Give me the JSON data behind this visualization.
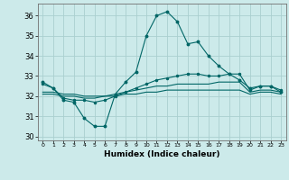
{
  "title": "",
  "xlabel": "Humidex (Indice chaleur)",
  "ylabel": "",
  "bg_color": "#cceaea",
  "line_color": "#006666",
  "grid_color": "#aacfcf",
  "xlim": [
    -0.5,
    23.5
  ],
  "ylim": [
    29.8,
    36.6
  ],
  "yticks": [
    30,
    31,
    32,
    33,
    34,
    35,
    36
  ],
  "xtick_labels": [
    "0",
    "1",
    "2",
    "3",
    "4",
    "5",
    "6",
    "7",
    "8",
    "9",
    "10",
    "11",
    "12",
    "13",
    "14",
    "15",
    "16",
    "17",
    "18",
    "19",
    "20",
    "21",
    "22",
    "23"
  ],
  "line1_x": [
    0,
    1,
    2,
    3,
    4,
    5,
    6,
    7,
    8,
    9,
    10,
    11,
    12,
    13,
    14,
    15,
    16,
    17,
    18,
    19,
    20,
    21,
    22,
    23
  ],
  "line1_y": [
    32.7,
    32.4,
    31.8,
    31.7,
    30.9,
    30.5,
    30.5,
    32.1,
    32.7,
    33.2,
    35.0,
    36.0,
    36.2,
    35.7,
    34.6,
    34.7,
    34.0,
    33.5,
    33.1,
    32.8,
    32.4,
    32.5,
    32.5,
    32.2
  ],
  "line2_x": [
    0,
    1,
    2,
    3,
    4,
    5,
    6,
    7,
    8,
    9,
    10,
    11,
    12,
    13,
    14,
    15,
    16,
    17,
    18,
    19,
    20,
    21,
    22,
    23
  ],
  "line2_y": [
    32.6,
    32.4,
    31.9,
    31.8,
    31.8,
    31.7,
    31.8,
    32.0,
    32.2,
    32.4,
    32.6,
    32.8,
    32.9,
    33.0,
    33.1,
    33.1,
    33.0,
    33.0,
    33.1,
    33.1,
    32.3,
    32.5,
    32.5,
    32.3
  ],
  "line3_x": [
    0,
    1,
    2,
    3,
    4,
    5,
    6,
    7,
    8,
    9,
    10,
    11,
    12,
    13,
    14,
    15,
    16,
    17,
    18,
    19,
    20,
    21,
    22,
    23
  ],
  "line3_y": [
    32.2,
    32.2,
    32.1,
    32.1,
    32.0,
    32.0,
    32.0,
    32.1,
    32.2,
    32.3,
    32.4,
    32.5,
    32.5,
    32.6,
    32.6,
    32.6,
    32.6,
    32.7,
    32.7,
    32.7,
    32.2,
    32.3,
    32.3,
    32.2
  ],
  "line4_x": [
    0,
    1,
    2,
    3,
    4,
    5,
    6,
    7,
    8,
    9,
    10,
    11,
    12,
    13,
    14,
    15,
    16,
    17,
    18,
    19,
    20,
    21,
    22,
    23
  ],
  "line4_y": [
    32.1,
    32.1,
    32.0,
    32.0,
    31.9,
    31.9,
    32.0,
    32.0,
    32.1,
    32.1,
    32.2,
    32.2,
    32.3,
    32.3,
    32.3,
    32.3,
    32.3,
    32.3,
    32.3,
    32.3,
    32.1,
    32.2,
    32.2,
    32.1
  ]
}
